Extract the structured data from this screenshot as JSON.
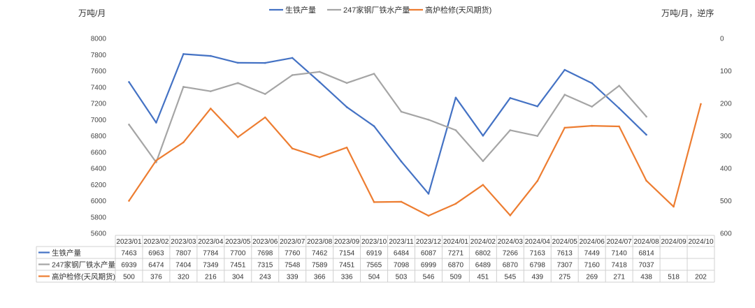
{
  "chart_data": {
    "type": "line",
    "left_unit": "万吨/月",
    "right_unit": "万吨/月，逆序",
    "categories": [
      "2023/01",
      "2023/02",
      "2023/03",
      "2023/04",
      "2023/05",
      "2023/06",
      "2023/07",
      "2023/08",
      "2023/09",
      "2023/10",
      "2023/11",
      "2023/12",
      "2024/01",
      "2024/02",
      "2024/03",
      "2024/04",
      "2024/05",
      "2024/06",
      "2024/07",
      "2024/08",
      "2024/09",
      "2024/10"
    ],
    "left_axis": {
      "min": 5600,
      "max": 8000,
      "step": 200,
      "ticks": [
        "8000",
        "7800",
        "7600",
        "7400",
        "7200",
        "7000",
        "6800",
        "6600",
        "6400",
        "6200",
        "6000",
        "5800",
        "5600"
      ]
    },
    "right_axis": {
      "min": 0,
      "max": 600,
      "step": 100,
      "reversed": true,
      "ticks": [
        "0",
        "100",
        "200",
        "300",
        "400",
        "500",
        "600"
      ]
    },
    "legend_position": "top-center",
    "grid": false,
    "series": [
      {
        "name": "生铁产量",
        "axis": "left",
        "color": "#4472C4",
        "values": [
          7463,
          6963,
          7807,
          7784,
          7700,
          7698,
          7760,
          7462,
          7154,
          6919,
          6484,
          6087,
          7271,
          6802,
          7266,
          7163,
          7613,
          7449,
          7140,
          6814,
          null,
          null
        ],
        "labels": [
          "7463",
          "6963",
          "7807",
          "7784",
          "7700",
          "7698",
          "7760",
          "7462",
          "7154",
          "6919",
          "6484",
          "6087",
          "7271",
          "6802",
          "7266",
          "7163",
          "7613",
          "7449",
          "7140",
          "6814",
          "",
          ""
        ]
      },
      {
        "name": "247家钢厂铁水产量",
        "axis": "left",
        "color": "#A5A5A5",
        "values": [
          6939,
          6474,
          7404,
          7349,
          7451,
          7315,
          7548,
          7589,
          7451,
          7565,
          7098,
          6999,
          6870,
          6489,
          6870,
          6798,
          7307,
          7160,
          7418,
          7037,
          null,
          null
        ],
        "labels": [
          "6939",
          "6474",
          "7404",
          "7349",
          "7451",
          "7315",
          "7548",
          "7589",
          "7451",
          "7565",
          "7098",
          "6999",
          "6870",
          "6489",
          "6870",
          "6798",
          "7307",
          "7160",
          "7418",
          "7037",
          "",
          ""
        ]
      },
      {
        "name": "高炉检修(天风期货)",
        "axis": "right",
        "color": "#ED7D31",
        "values": [
          500,
          376,
          320,
          216,
          304,
          243,
          339,
          366,
          336,
          504,
          503,
          546,
          509,
          451,
          545,
          439,
          275,
          269,
          271,
          438,
          518,
          202
        ],
        "labels": [
          "500",
          "376",
          "320",
          "216",
          "304",
          "243",
          "339",
          "366",
          "336",
          "504",
          "503",
          "546",
          "509",
          "451",
          "545",
          "439",
          "275",
          "269",
          "271",
          "438",
          "518",
          "202"
        ]
      }
    ]
  }
}
